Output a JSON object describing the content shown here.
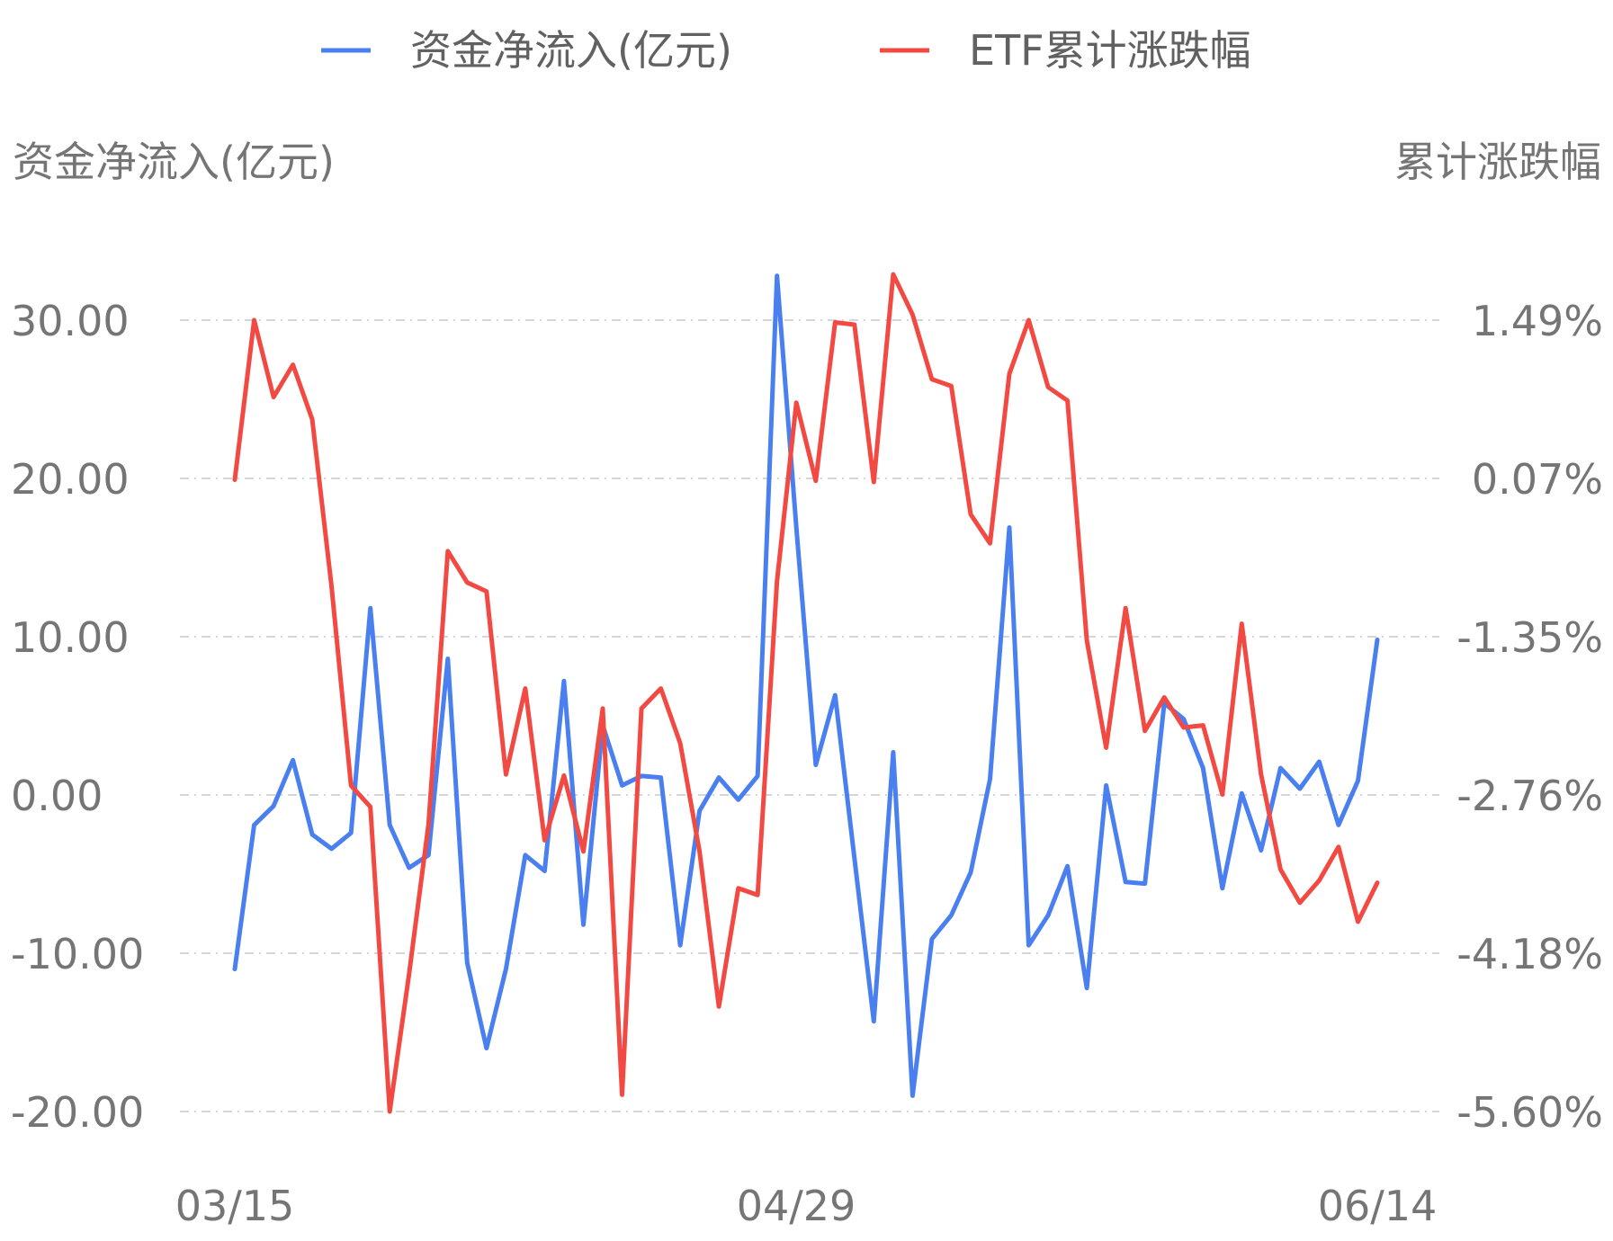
{
  "chart_data": {
    "type": "line",
    "legend": {
      "position": "top-center",
      "items": [
        {
          "label": "资金净流入(亿元)",
          "color": "#4a7ff0"
        },
        {
          "label": "ETF累计涨跌幅",
          "color": "#f24a43"
        }
      ]
    },
    "left_axis": {
      "title": "资金净流入(亿元)",
      "range": [
        -20,
        30
      ],
      "tick_labels": [
        "30.00",
        "20.00",
        "10.00",
        "0.00",
        "-10.00",
        "-20.00"
      ]
    },
    "right_axis": {
      "title": "累计涨跌幅",
      "range": [
        -5.6,
        1.49
      ],
      "tick_labels": [
        "1.49%",
        "0.07%",
        "-1.35%",
        "-2.76%",
        "-4.18%",
        "-5.60%"
      ]
    },
    "x_axis": {
      "tick_labels": [
        "03/15",
        "04/29",
        "06/14"
      ]
    },
    "grid": true,
    "series": [
      {
        "name": "资金净流入(亿元)",
        "axis": "left",
        "color": "#4a7ff0",
        "values": [
          -11.0,
          -1.9,
          -0.7,
          2.2,
          -2.5,
          -3.4,
          -2.4,
          11.8,
          -1.9,
          -4.6,
          -3.8,
          8.6,
          -10.6,
          -16.0,
          -11.0,
          -3.8,
          -4.8,
          7.2,
          -8.2,
          4.4,
          0.6,
          1.2,
          1.1,
          -9.5,
          -1.0,
          1.1,
          -0.3,
          1.2,
          32.8,
          16.9,
          1.9,
          6.3,
          -4.0,
          -14.3,
          2.7,
          -19.0,
          -9.1,
          -7.6,
          -4.9,
          1.0,
          16.9,
          -9.5,
          -7.6,
          -4.5,
          -12.2,
          0.6,
          -5.5,
          -5.6,
          5.8,
          4.8,
          1.7,
          -5.9,
          0.1,
          -3.5,
          1.7,
          0.4,
          2.1,
          -1.9,
          0.9,
          9.8
        ]
      },
      {
        "name": "ETF累计涨跌幅",
        "axis": "right",
        "color": "#f24a43",
        "values": [
          0.06,
          1.49,
          0.8,
          1.09,
          0.6,
          -0.9,
          -2.68,
          -2.87,
          -5.6,
          -4.37,
          -3.03,
          -0.58,
          -0.86,
          -0.94,
          -2.58,
          -1.81,
          -3.17,
          -2.59,
          -3.27,
          -1.99,
          -5.45,
          -1.99,
          -1.81,
          -2.3,
          -3.27,
          -4.66,
          -3.6,
          -3.66,
          -0.85,
          0.75,
          0.05,
          1.47,
          1.45,
          0.04,
          1.9,
          1.54,
          0.96,
          0.9,
          -0.25,
          -0.51,
          1.01,
          1.49,
          0.89,
          0.77,
          -1.38,
          -2.34,
          -1.09,
          -2.19,
          -1.89,
          -2.16,
          -2.14,
          -2.76,
          -1.23,
          -2.58,
          -3.43,
          -3.73,
          -3.53,
          -3.23,
          -3.9,
          -3.55
        ]
      }
    ]
  }
}
